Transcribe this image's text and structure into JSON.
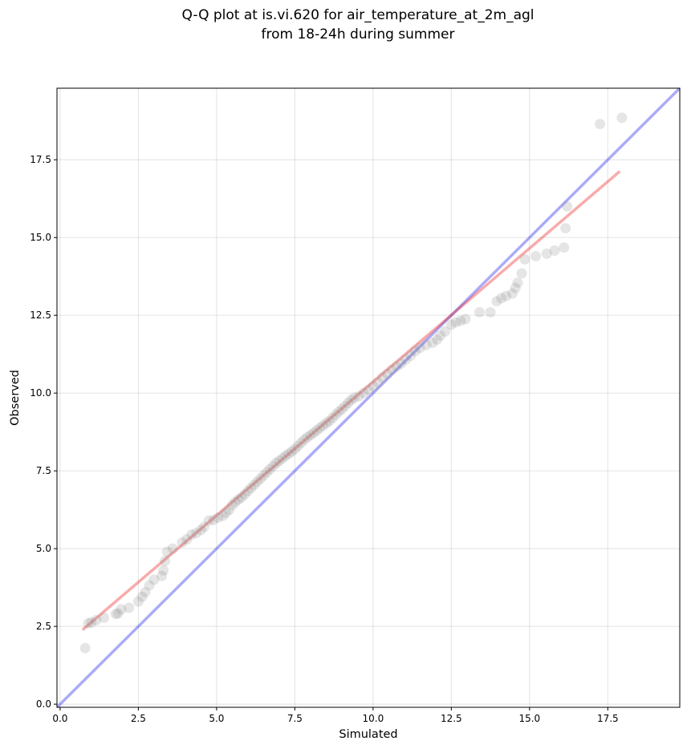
{
  "chart_data": {
    "type": "scatter",
    "title_lines": [
      "Q-Q plot at is.vi.620 for air_temperature_at_2m_agl",
      "from 18-24h during summer"
    ],
    "xlabel": "Simulated",
    "ylabel": "Observed",
    "xlim": [
      -0.1,
      19.8
    ],
    "ylim": [
      -0.1,
      19.8
    ],
    "xticks": [
      0.0,
      2.5,
      5.0,
      7.5,
      10.0,
      12.5,
      15.0,
      17.5
    ],
    "yticks": [
      0.0,
      2.5,
      5.0,
      7.5,
      10.0,
      12.5,
      15.0,
      17.5
    ],
    "xtick_labels": [
      "0.0",
      "2.5",
      "5.0",
      "7.5",
      "10.0",
      "12.5",
      "15.0",
      "17.5"
    ],
    "ytick_labels": [
      "0.0",
      "2.5",
      "5.0",
      "7.5",
      "10.0",
      "12.5",
      "15.0",
      "17.5"
    ],
    "grid": true,
    "identity_line": {
      "from": [
        -0.1,
        -0.1
      ],
      "to": [
        19.8,
        19.8
      ],
      "color": "#0000ee"
    },
    "fit_line": {
      "from": [
        0.75,
        2.42
      ],
      "to": [
        17.85,
        17.1
      ],
      "color": "#ee0000"
    },
    "point_color": "#888888",
    "points": [
      [
        0.8,
        1.8
      ],
      [
        0.9,
        2.6
      ],
      [
        1.0,
        2.63
      ],
      [
        1.15,
        2.7
      ],
      [
        1.4,
        2.78
      ],
      [
        1.78,
        2.9
      ],
      [
        1.85,
        2.92
      ],
      [
        1.95,
        3.05
      ],
      [
        2.2,
        3.1
      ],
      [
        2.5,
        3.3
      ],
      [
        2.62,
        3.45
      ],
      [
        2.72,
        3.6
      ],
      [
        2.85,
        3.82
      ],
      [
        3.0,
        4.0
      ],
      [
        3.25,
        4.12
      ],
      [
        3.3,
        4.3
      ],
      [
        3.35,
        4.6
      ],
      [
        3.42,
        4.9
      ],
      [
        3.6,
        5.0
      ],
      [
        3.9,
        5.2
      ],
      [
        4.05,
        5.3
      ],
      [
        4.2,
        5.45
      ],
      [
        4.35,
        5.5
      ],
      [
        4.5,
        5.6
      ],
      [
        4.6,
        5.7
      ],
      [
        4.75,
        5.9
      ],
      [
        4.9,
        5.92
      ],
      [
        5.05,
        6.0
      ],
      [
        5.2,
        6.05
      ],
      [
        5.3,
        6.15
      ],
      [
        5.4,
        6.25
      ],
      [
        5.5,
        6.4
      ],
      [
        5.6,
        6.5
      ],
      [
        5.7,
        6.58
      ],
      [
        5.8,
        6.65
      ],
      [
        5.9,
        6.75
      ],
      [
        6.0,
        6.85
      ],
      [
        6.1,
        6.95
      ],
      [
        6.2,
        7.05
      ],
      [
        6.3,
        7.15
      ],
      [
        6.4,
        7.25
      ],
      [
        6.5,
        7.35
      ],
      [
        6.6,
        7.45
      ],
      [
        6.7,
        7.55
      ],
      [
        6.8,
        7.65
      ],
      [
        6.9,
        7.75
      ],
      [
        7.0,
        7.82
      ],
      [
        7.1,
        7.9
      ],
      [
        7.2,
        7.98
      ],
      [
        7.3,
        8.05
      ],
      [
        7.4,
        8.12
      ],
      [
        7.5,
        8.2
      ],
      [
        7.6,
        8.3
      ],
      [
        7.7,
        8.4
      ],
      [
        7.8,
        8.5
      ],
      [
        7.9,
        8.58
      ],
      [
        8.0,
        8.65
      ],
      [
        8.1,
        8.72
      ],
      [
        8.2,
        8.8
      ],
      [
        8.3,
        8.88
      ],
      [
        8.4,
        8.95
      ],
      [
        8.5,
        9.03
      ],
      [
        8.6,
        9.1
      ],
      [
        8.7,
        9.2
      ],
      [
        8.8,
        9.3
      ],
      [
        8.9,
        9.4
      ],
      [
        9.0,
        9.48
      ],
      [
        9.1,
        9.58
      ],
      [
        9.2,
        9.68
      ],
      [
        9.3,
        9.78
      ],
      [
        9.4,
        9.85
      ],
      [
        9.55,
        9.9
      ],
      [
        9.7,
        10.0
      ],
      [
        9.85,
        10.1
      ],
      [
        10.0,
        10.22
      ],
      [
        10.15,
        10.35
      ],
      [
        10.3,
        10.5
      ],
      [
        10.45,
        10.62
      ],
      [
        10.6,
        10.75
      ],
      [
        10.75,
        10.85
      ],
      [
        10.9,
        10.95
      ],
      [
        11.05,
        11.08
      ],
      [
        11.2,
        11.2
      ],
      [
        11.35,
        11.35
      ],
      [
        11.5,
        11.45
      ],
      [
        11.7,
        11.55
      ],
      [
        11.9,
        11.62
      ],
      [
        12.05,
        11.72
      ],
      [
        12.15,
        11.85
      ],
      [
        12.3,
        11.98
      ],
      [
        12.5,
        12.2
      ],
      [
        12.65,
        12.28
      ],
      [
        12.8,
        12.32
      ],
      [
        12.95,
        12.38
      ],
      [
        13.4,
        12.6
      ],
      [
        13.75,
        12.6
      ],
      [
        13.95,
        12.95
      ],
      [
        14.1,
        13.05
      ],
      [
        14.25,
        13.12
      ],
      [
        14.45,
        13.2
      ],
      [
        14.55,
        13.38
      ],
      [
        14.62,
        13.55
      ],
      [
        14.75,
        13.85
      ],
      [
        14.85,
        14.3
      ],
      [
        15.2,
        14.4
      ],
      [
        15.55,
        14.48
      ],
      [
        15.8,
        14.58
      ],
      [
        16.1,
        14.68
      ],
      [
        16.15,
        15.3
      ],
      [
        16.2,
        16.0
      ],
      [
        17.25,
        18.65
      ],
      [
        17.95,
        18.85
      ]
    ]
  }
}
